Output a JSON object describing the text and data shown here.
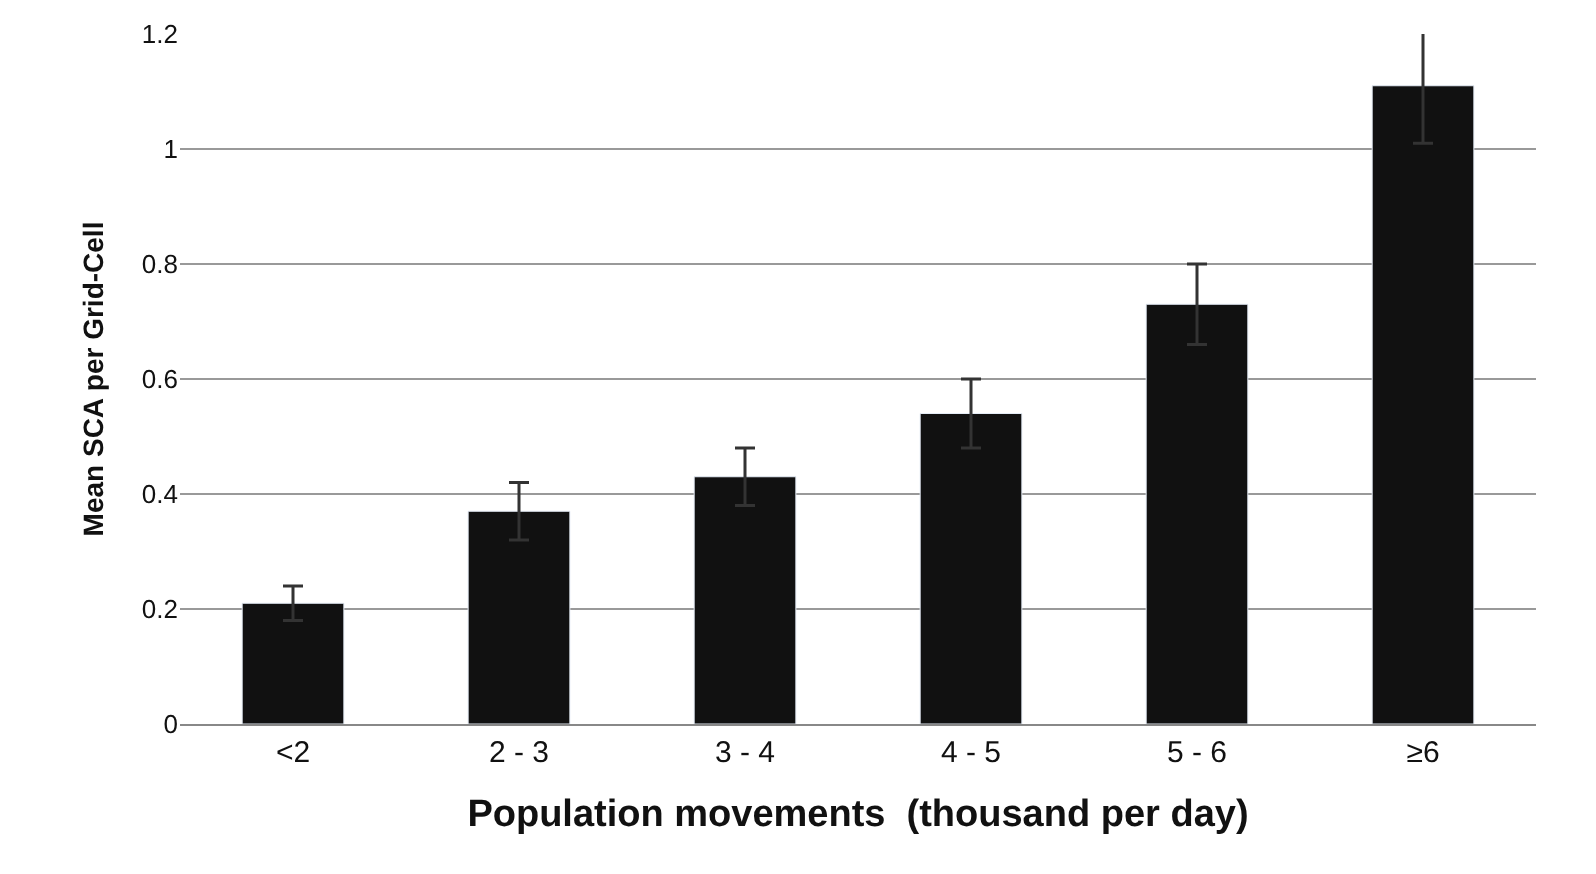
{
  "chart_data": {
    "type": "bar",
    "xlabel": "Population movements  (thousand per day)",
    "ylabel": "Mean SCA per Grid-Cell",
    "categories": [
      "<2",
      "2 - 3",
      "3 - 4",
      "4 - 5",
      "5 - 6",
      "≥6"
    ],
    "values": [
      0.21,
      0.37,
      0.43,
      0.54,
      0.73,
      1.11
    ],
    "errors": [
      0.03,
      0.05,
      0.05,
      0.06,
      0.07,
      0.1
    ],
    "color": "#111111",
    "ylim": [
      0,
      1.2
    ],
    "yticks": [
      0,
      0.2,
      0.4,
      0.6,
      0.8,
      1,
      1.2
    ],
    "grid": "y"
  }
}
